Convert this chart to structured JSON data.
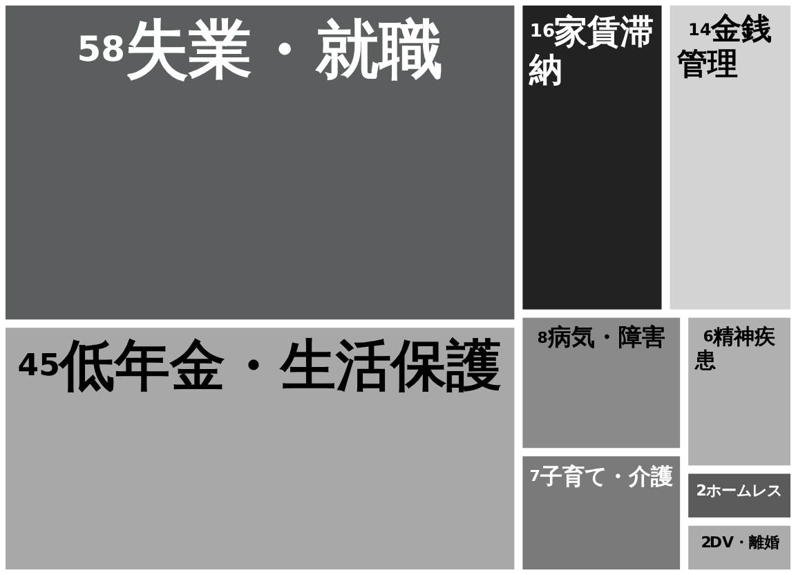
{
  "chart_data": {
    "type": "other",
    "categories": [
      "失業・就職",
      "低年金・生活保護",
      "家賃滞納",
      "金銭管理",
      "病気・障害",
      "子育て・介護",
      "精神疾患",
      "DV・離婚",
      "ホームレス"
    ],
    "values": [
      58,
      45,
      16,
      14,
      8,
      7,
      6,
      2,
      2
    ],
    "colors": [
      "#5a5e5f",
      "#a8a8a8",
      "#222222",
      "#d3d3d3",
      "#8a8a8a",
      "#7a7a7a",
      "#b0b0b0",
      "#acacac",
      "#5a5a5a"
    ],
    "data_labels": true
  }
}
